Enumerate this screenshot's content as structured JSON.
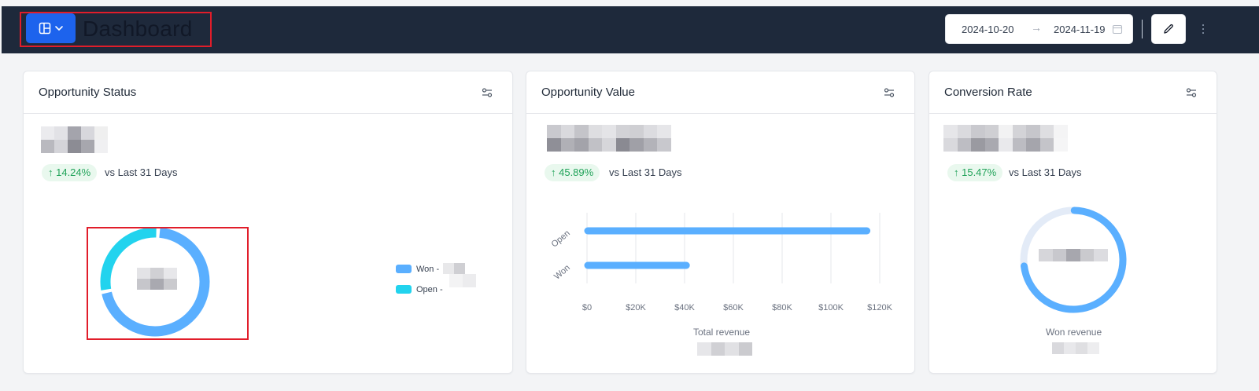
{
  "header": {
    "title": "Dashboard",
    "layout_button_icon": "layout-icon",
    "date_start": "2024-10-20",
    "date_end": "2024-11-19",
    "date_arrow": "→",
    "edit_icon": "pencil-icon",
    "menu_icon": "kebab-icon"
  },
  "colors": {
    "header_bg": "#1e293b",
    "accent": "#1d63ed",
    "won": "#5aafff",
    "open": "#22d3ee",
    "positive": "#22a35a",
    "ring_track": "#e3ebf7"
  },
  "cards": {
    "status": {
      "title": "Opportunity Status",
      "change": "↑ 14.24%",
      "compare": "vs Last 31 Days",
      "legend": [
        {
          "label": "Won -"
        },
        {
          "label": "Open -"
        }
      ]
    },
    "value": {
      "title": "Opportunity Value",
      "change": "↑ 45.89%",
      "compare": "vs Last 31 Days",
      "footer_label": "Total revenue"
    },
    "conversion": {
      "title": "Conversion Rate",
      "change": "↑ 15.47%",
      "compare": "vs Last 31 Days",
      "footer_label": "Won revenue"
    }
  },
  "chart_data": [
    {
      "type": "pie",
      "variant": "donut",
      "categories": [
        "Won",
        "Open"
      ],
      "values": [
        71,
        29
      ],
      "legend_position": "right"
    },
    {
      "type": "bar",
      "orientation": "horizontal",
      "categories": [
        "Open",
        "Won"
      ],
      "values": [
        116000,
        42000
      ],
      "xticks": [
        "$0",
        "$20K",
        "$40K",
        "$60K",
        "$80K",
        "$100K",
        "$120K"
      ],
      "xlim": [
        0,
        120000
      ],
      "grid": true
    },
    {
      "type": "pie",
      "variant": "progress-ring",
      "values": [
        73
      ],
      "max": 100
    }
  ]
}
